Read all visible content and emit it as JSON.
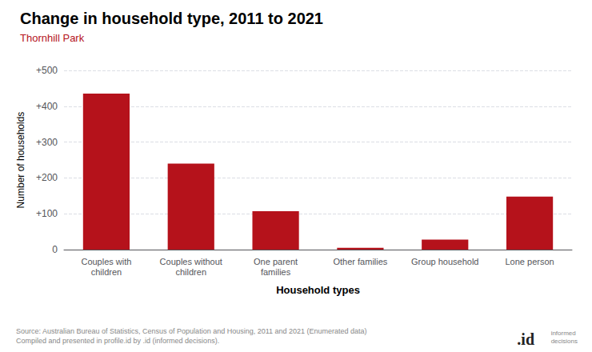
{
  "chart_data": {
    "type": "bar",
    "title": "Change in household type, 2011 to 2021",
    "subtitle": "Thornhill Park",
    "categories": [
      "Couples with\nchildren",
      "Couples without\nchildren",
      "One parent\nfamilies",
      "Other families",
      "Group household",
      "Lone person"
    ],
    "values": [
      435,
      240,
      107,
      5,
      28,
      148
    ],
    "color": "#b5121b",
    "xlabel": "Household types",
    "ylabel": "Number of households",
    "ylim": [
      0,
      500
    ],
    "yticks": [
      0,
      {
        "value": 100,
        "label": "+100"
      },
      {
        "value": 200,
        "label": "+200"
      },
      {
        "value": 300,
        "label": "+300"
      },
      {
        "value": 400,
        "label": "+400"
      },
      {
        "value": 500,
        "label": "+500"
      }
    ],
    "grid": true,
    "annotations": [
      "Source: Australian Bureau of Statistics, Census of Population and Housing, 2011 and 2021 (Enumerated data)\nCompiled and presented in profile.id by .id (informed decisions).",
      ".id",
      "informed\ndecisions"
    ]
  }
}
